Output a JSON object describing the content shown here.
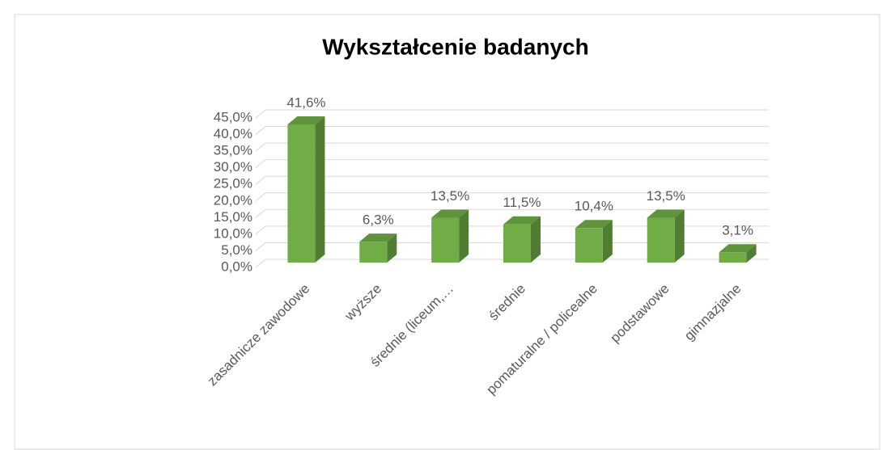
{
  "chart_data": {
    "type": "bar",
    "title": "Wykształcenie badanych",
    "categories": [
      "zasadnicze zawodowe",
      "wyższe",
      "średnie (liceum,…",
      "średnie",
      "pomaturalne / policealne",
      "podstawowe",
      "gimnazjalne"
    ],
    "values": [
      41.6,
      6.3,
      13.5,
      11.5,
      10.4,
      13.5,
      3.1
    ],
    "value_labels": [
      "41,6%",
      "6,3%",
      "13,5%",
      "11,5%",
      "10,4%",
      "13,5%",
      "3,1%"
    ],
    "color": "#70ad47",
    "ylim": [
      0,
      45
    ],
    "yticks": [
      {
        "value": 0,
        "label": "0,0%"
      },
      {
        "value": 5,
        "label": "5,0%"
      },
      {
        "value": 10,
        "label": "10,0%"
      },
      {
        "value": 15,
        "label": "15,0%"
      },
      {
        "value": 20,
        "label": "20,0%"
      },
      {
        "value": 25,
        "label": "25,0%"
      },
      {
        "value": 30,
        "label": "30,0%"
      },
      {
        "value": 35,
        "label": "35,0%"
      },
      {
        "value": 40,
        "label": "40,0%"
      },
      {
        "value": 45,
        "label": "45,0%"
      }
    ],
    "grid": true
  }
}
